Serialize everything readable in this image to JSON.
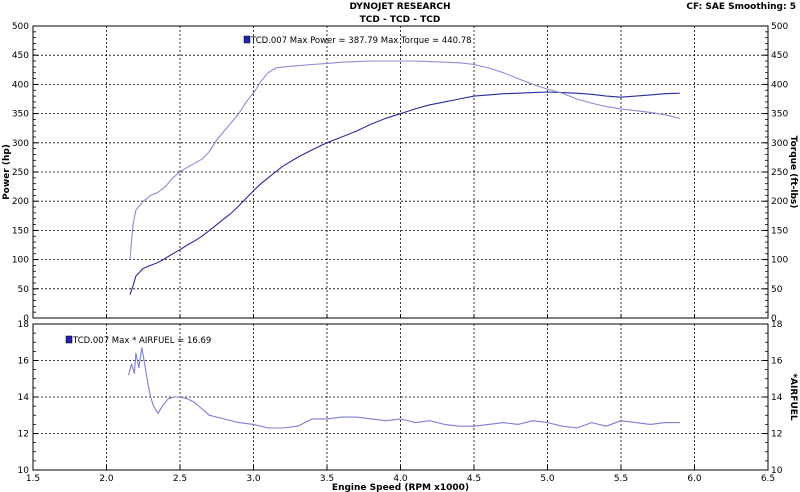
{
  "header": {
    "title": "DYNOJET RESEARCH",
    "subtitle": "TCD - TCD - TCD",
    "settings": "CF: SAE   Smoothing: 5"
  },
  "colors": {
    "power": "#2a2a9e",
    "torque": "#8c8cd8",
    "airfuel": "#7d7dd6",
    "marker": "#2222aa",
    "grid": "#000000"
  },
  "chart_data": [
    {
      "type": "line",
      "title": "",
      "xlabel": "Engine Speed (RPM x1000)",
      "ylabel": "Power (hp)",
      "ylabel_right": "Torque (ft-lbs)",
      "xlim": [
        1.5,
        6.5
      ],
      "ylim": [
        0,
        500
      ],
      "ylim_right": [
        0,
        500
      ],
      "x_ticks": [
        "1.5",
        "2.0",
        "2.5",
        "3.0",
        "3.5",
        "4.0",
        "4.5",
        "5.0",
        "5.5",
        "6.0",
        "6.5"
      ],
      "y_ticks": [
        "0",
        "50",
        "100",
        "150",
        "200",
        "250",
        "300",
        "350",
        "400",
        "450",
        "500"
      ],
      "y_ticks_right": [
        "0",
        "50",
        "100",
        "150",
        "200",
        "250",
        "300",
        "350",
        "400",
        "450",
        "500"
      ],
      "grid": true,
      "annotation": "TCD.007 Max Power = 387.79    Max Torque = 440.78",
      "series": [
        {
          "name": "TCD.007 Power",
          "x": [
            2.16,
            2.18,
            2.2,
            2.25,
            2.3,
            2.35,
            2.4,
            2.45,
            2.5,
            2.55,
            2.6,
            2.65,
            2.7,
            2.75,
            2.8,
            2.85,
            2.9,
            2.95,
            3.0,
            3.05,
            3.1,
            3.15,
            3.2,
            3.3,
            3.4,
            3.5,
            3.6,
            3.7,
            3.8,
            3.9,
            4.0,
            4.1,
            4.2,
            4.3,
            4.4,
            4.5,
            4.6,
            4.7,
            4.8,
            4.9,
            5.0,
            5.1,
            5.2,
            5.3,
            5.4,
            5.5,
            5.6,
            5.7,
            5.8,
            5.9
          ],
          "y": [
            40,
            55,
            72,
            85,
            90,
            95,
            102,
            110,
            117,
            125,
            132,
            140,
            150,
            160,
            170,
            180,
            192,
            205,
            218,
            230,
            240,
            250,
            260,
            275,
            288,
            300,
            310,
            320,
            332,
            342,
            350,
            358,
            365,
            370,
            375,
            380,
            382,
            384,
            385,
            386,
            387,
            386,
            385,
            383,
            380,
            378,
            380,
            382,
            384,
            385
          ]
        },
        {
          "name": "TCD.007 Torque",
          "x": [
            2.16,
            2.18,
            2.2,
            2.25,
            2.3,
            2.35,
            2.4,
            2.45,
            2.5,
            2.55,
            2.6,
            2.65,
            2.7,
            2.75,
            2.8,
            2.85,
            2.9,
            2.95,
            3.0,
            3.05,
            3.1,
            3.15,
            3.2,
            3.3,
            3.4,
            3.5,
            3.6,
            3.7,
            3.8,
            3.9,
            4.0,
            4.1,
            4.2,
            4.3,
            4.4,
            4.5,
            4.6,
            4.7,
            4.8,
            4.9,
            5.0,
            5.1,
            5.2,
            5.3,
            5.4,
            5.5,
            5.6,
            5.7,
            5.8,
            5.9
          ],
          "y": [
            100,
            160,
            185,
            200,
            210,
            215,
            225,
            240,
            250,
            258,
            265,
            272,
            285,
            305,
            320,
            335,
            350,
            370,
            385,
            405,
            420,
            428,
            430,
            432,
            434,
            436,
            438,
            439,
            440,
            440,
            440,
            440,
            439,
            438,
            437,
            434,
            428,
            420,
            410,
            400,
            392,
            385,
            375,
            368,
            362,
            358,
            355,
            352,
            348,
            342
          ]
        }
      ]
    },
    {
      "type": "line",
      "title": "",
      "xlabel": "Engine Speed (RPM x1000)",
      "ylabel": "",
      "ylabel_right": "*AIRFUEL",
      "xlim": [
        1.5,
        6.5
      ],
      "ylim": [
        10,
        18
      ],
      "ylim_right": [
        10,
        18
      ],
      "x_ticks": [
        "1.5",
        "2.0",
        "2.5",
        "3.0",
        "3.5",
        "4.0",
        "4.5",
        "5.0",
        "5.5",
        "6.0",
        "6.5"
      ],
      "y_ticks": [
        "10",
        "12",
        "14",
        "16",
        "18"
      ],
      "y_ticks_right": [
        "10",
        "12",
        "14",
        "16",
        "18"
      ],
      "grid": true,
      "annotation": "TCD.007 Max * AIRFUEL = 16.69",
      "series": [
        {
          "name": "TCD.007 *AIRFUEL",
          "x": [
            2.15,
            2.17,
            2.19,
            2.2,
            2.22,
            2.24,
            2.26,
            2.28,
            2.3,
            2.32,
            2.35,
            2.38,
            2.42,
            2.46,
            2.5,
            2.55,
            2.6,
            2.7,
            2.8,
            2.9,
            3.0,
            3.1,
            3.2,
            3.3,
            3.4,
            3.5,
            3.6,
            3.7,
            3.8,
            3.9,
            4.0,
            4.1,
            4.2,
            4.3,
            4.4,
            4.5,
            4.6,
            4.7,
            4.8,
            4.9,
            5.0,
            5.1,
            5.2,
            5.3,
            5.4,
            5.5,
            5.6,
            5.7,
            5.8,
            5.9
          ],
          "y": [
            15.2,
            15.8,
            15.3,
            16.4,
            15.6,
            16.7,
            15.8,
            14.8,
            14.0,
            13.5,
            13.1,
            13.5,
            13.9,
            14.0,
            14.0,
            13.9,
            13.7,
            13.0,
            12.8,
            12.6,
            12.5,
            12.3,
            12.3,
            12.4,
            12.8,
            12.8,
            12.9,
            12.9,
            12.8,
            12.7,
            12.8,
            12.6,
            12.7,
            12.5,
            12.4,
            12.4,
            12.5,
            12.6,
            12.5,
            12.7,
            12.6,
            12.4,
            12.3,
            12.6,
            12.4,
            12.7,
            12.6,
            12.5,
            12.6,
            12.6
          ]
        }
      ]
    }
  ]
}
